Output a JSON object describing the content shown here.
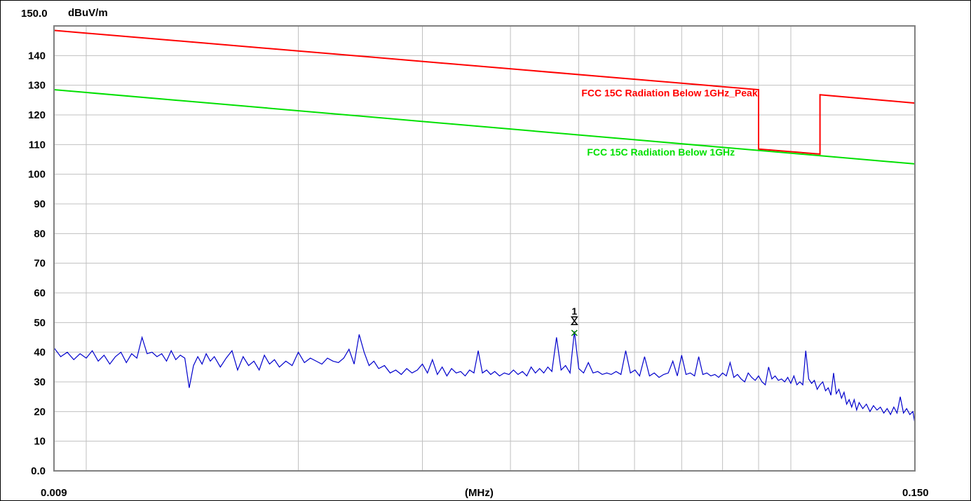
{
  "chart_data": {
    "type": "line",
    "title_value": "150.0",
    "unit_label": "dBuV/m",
    "xlabel": "(MHz)",
    "x_start_label": "0.009",
    "x_end_label": "0.150",
    "xlim": [
      0.009,
      0.15
    ],
    "x_scale": "log",
    "ylim": [
      0,
      150
    ],
    "y_ticks": [
      0,
      10,
      20,
      30,
      40,
      50,
      60,
      70,
      80,
      90,
      100,
      110,
      120,
      130,
      140,
      150
    ],
    "y_tick_labels": [
      "0.0",
      "10",
      "20",
      "30",
      "40",
      "50",
      "60",
      "70",
      "80",
      "90",
      "100",
      "110",
      "120",
      "130",
      "140"
    ],
    "grid": true,
    "limit_lines": [
      {
        "name": "FCC  15C Radiation Below 1GHz_Peak",
        "color": "#ff0000",
        "points": [
          [
            0.009,
            148.5
          ],
          [
            0.09,
            128.5
          ],
          [
            0.09,
            108.5
          ],
          [
            0.11,
            106.8
          ],
          [
            0.11,
            126.8
          ],
          [
            0.15,
            124.0
          ]
        ]
      },
      {
        "name": "FCC  15C Radiation Below 1GHz",
        "color": "#00e000",
        "points": [
          [
            0.009,
            128.5
          ],
          [
            0.15,
            103.5
          ]
        ]
      }
    ],
    "trace": {
      "color": "#0000cc",
      "points": [
        [
          0.009,
          41.5
        ],
        [
          0.0092,
          38.5
        ],
        [
          0.0094,
          40.0
        ],
        [
          0.0096,
          37.5
        ],
        [
          0.0098,
          39.5
        ],
        [
          0.01,
          38.0
        ],
        [
          0.0102,
          40.5
        ],
        [
          0.0104,
          37.0
        ],
        [
          0.0106,
          39.0
        ],
        [
          0.0108,
          36.0
        ],
        [
          0.011,
          38.5
        ],
        [
          0.0112,
          40.0
        ],
        [
          0.0114,
          36.5
        ],
        [
          0.0116,
          39.5
        ],
        [
          0.0118,
          38.0
        ],
        [
          0.012,
          45.0
        ],
        [
          0.0122,
          39.5
        ],
        [
          0.0124,
          40.0
        ],
        [
          0.0126,
          38.5
        ],
        [
          0.0128,
          39.5
        ],
        [
          0.013,
          37.0
        ],
        [
          0.0132,
          40.5
        ],
        [
          0.0134,
          37.5
        ],
        [
          0.0136,
          39.0
        ],
        [
          0.0138,
          38.0
        ],
        [
          0.014,
          28.0
        ],
        [
          0.0142,
          35.5
        ],
        [
          0.0144,
          38.5
        ],
        [
          0.0146,
          36.0
        ],
        [
          0.0148,
          39.5
        ],
        [
          0.015,
          37.0
        ],
        [
          0.0152,
          38.5
        ],
        [
          0.0155,
          35.0
        ],
        [
          0.0158,
          38.0
        ],
        [
          0.0161,
          40.5
        ],
        [
          0.0164,
          34.0
        ],
        [
          0.0167,
          38.5
        ],
        [
          0.017,
          35.5
        ],
        [
          0.0173,
          37.0
        ],
        [
          0.0176,
          34.0
        ],
        [
          0.0179,
          39.0
        ],
        [
          0.0182,
          36.0
        ],
        [
          0.0185,
          37.5
        ],
        [
          0.0188,
          35.0
        ],
        [
          0.0192,
          37.0
        ],
        [
          0.0196,
          35.5
        ],
        [
          0.02,
          40.0
        ],
        [
          0.0204,
          36.5
        ],
        [
          0.0208,
          38.0
        ],
        [
          0.0212,
          37.0
        ],
        [
          0.0216,
          36.0
        ],
        [
          0.022,
          38.0
        ],
        [
          0.0224,
          37.0
        ],
        [
          0.0228,
          36.5
        ],
        [
          0.0232,
          38.0
        ],
        [
          0.0236,
          41.0
        ],
        [
          0.024,
          36.0
        ],
        [
          0.0244,
          46.0
        ],
        [
          0.0248,
          40.0
        ],
        [
          0.0252,
          35.5
        ],
        [
          0.0256,
          37.0
        ],
        [
          0.026,
          34.5
        ],
        [
          0.0265,
          35.5
        ],
        [
          0.027,
          33.0
        ],
        [
          0.0275,
          34.0
        ],
        [
          0.028,
          32.5
        ],
        [
          0.0285,
          34.5
        ],
        [
          0.029,
          33.0
        ],
        [
          0.0295,
          34.0
        ],
        [
          0.03,
          36.0
        ],
        [
          0.0305,
          33.0
        ],
        [
          0.031,
          37.5
        ],
        [
          0.0315,
          32.5
        ],
        [
          0.032,
          35.0
        ],
        [
          0.0325,
          32.0
        ],
        [
          0.033,
          34.5
        ],
        [
          0.0335,
          33.0
        ],
        [
          0.034,
          33.5
        ],
        [
          0.0345,
          32.0
        ],
        [
          0.035,
          34.0
        ],
        [
          0.0355,
          33.0
        ],
        [
          0.036,
          40.5
        ],
        [
          0.0365,
          33.0
        ],
        [
          0.037,
          34.0
        ],
        [
          0.0375,
          32.5
        ],
        [
          0.038,
          33.5
        ],
        [
          0.0386,
          32.0
        ],
        [
          0.0392,
          33.0
        ],
        [
          0.0398,
          32.5
        ],
        [
          0.0404,
          34.0
        ],
        [
          0.041,
          32.5
        ],
        [
          0.0416,
          33.5
        ],
        [
          0.0422,
          32.0
        ],
        [
          0.0428,
          35.0
        ],
        [
          0.0434,
          33.0
        ],
        [
          0.044,
          34.5
        ],
        [
          0.0446,
          33.0
        ],
        [
          0.0452,
          35.0
        ],
        [
          0.0458,
          33.5
        ],
        [
          0.0465,
          45.0
        ],
        [
          0.0472,
          34.0
        ],
        [
          0.0479,
          35.5
        ],
        [
          0.0486,
          33.0
        ],
        [
          0.0493,
          47.0
        ],
        [
          0.05,
          34.5
        ],
        [
          0.0508,
          33.0
        ],
        [
          0.0516,
          36.5
        ],
        [
          0.0524,
          33.0
        ],
        [
          0.0532,
          33.5
        ],
        [
          0.054,
          32.5
        ],
        [
          0.0548,
          33.0
        ],
        [
          0.0556,
          32.5
        ],
        [
          0.0565,
          33.5
        ],
        [
          0.0574,
          32.5
        ],
        [
          0.0583,
          40.5
        ],
        [
          0.0592,
          33.0
        ],
        [
          0.0601,
          34.0
        ],
        [
          0.061,
          32.0
        ],
        [
          0.062,
          38.5
        ],
        [
          0.063,
          32.0
        ],
        [
          0.064,
          33.0
        ],
        [
          0.065,
          31.5
        ],
        [
          0.066,
          32.5
        ],
        [
          0.067,
          33.0
        ],
        [
          0.068,
          37.0
        ],
        [
          0.069,
          32.0
        ],
        [
          0.07,
          39.0
        ],
        [
          0.071,
          32.5
        ],
        [
          0.072,
          33.0
        ],
        [
          0.073,
          32.0
        ],
        [
          0.074,
          38.5
        ],
        [
          0.075,
          32.5
        ],
        [
          0.076,
          33.0
        ],
        [
          0.077,
          32.0
        ],
        [
          0.078,
          32.5
        ],
        [
          0.079,
          31.5
        ],
        [
          0.08,
          33.0
        ],
        [
          0.081,
          32.0
        ],
        [
          0.082,
          36.5
        ],
        [
          0.083,
          31.5
        ],
        [
          0.084,
          32.5
        ],
        [
          0.085,
          31.0
        ],
        [
          0.086,
          30.0
        ],
        [
          0.087,
          33.0
        ],
        [
          0.088,
          31.5
        ],
        [
          0.089,
          30.5
        ],
        [
          0.09,
          32.0
        ],
        [
          0.091,
          30.0
        ],
        [
          0.092,
          29.0
        ],
        [
          0.093,
          35.0
        ],
        [
          0.094,
          31.0
        ],
        [
          0.095,
          32.0
        ],
        [
          0.096,
          30.5
        ],
        [
          0.097,
          31.0
        ],
        [
          0.098,
          30.0
        ],
        [
          0.099,
          31.5
        ],
        [
          0.1,
          29.5
        ],
        [
          0.101,
          32.0
        ],
        [
          0.102,
          29.0
        ],
        [
          0.103,
          30.0
        ],
        [
          0.104,
          29.0
        ],
        [
          0.105,
          40.5
        ],
        [
          0.106,
          31.0
        ],
        [
          0.107,
          29.5
        ],
        [
          0.108,
          30.5
        ],
        [
          0.109,
          27.5
        ],
        [
          0.11,
          29.0
        ],
        [
          0.111,
          30.0
        ],
        [
          0.112,
          27.0
        ],
        [
          0.113,
          28.0
        ],
        [
          0.114,
          25.5
        ],
        [
          0.115,
          33.0
        ],
        [
          0.116,
          26.0
        ],
        [
          0.117,
          27.5
        ],
        [
          0.118,
          24.5
        ],
        [
          0.119,
          26.5
        ],
        [
          0.12,
          22.5
        ],
        [
          0.121,
          24.0
        ],
        [
          0.122,
          21.5
        ],
        [
          0.123,
          24.0
        ],
        [
          0.124,
          20.5
        ],
        [
          0.125,
          23.0
        ],
        [
          0.1265,
          21.0
        ],
        [
          0.128,
          22.5
        ],
        [
          0.1295,
          20.0
        ],
        [
          0.131,
          22.0
        ],
        [
          0.1325,
          20.5
        ],
        [
          0.134,
          21.5
        ],
        [
          0.1355,
          19.5
        ],
        [
          0.137,
          21.0
        ],
        [
          0.1385,
          19.0
        ],
        [
          0.14,
          21.5
        ],
        [
          0.1415,
          19.5
        ],
        [
          0.143,
          25.0
        ],
        [
          0.1445,
          19.5
        ],
        [
          0.146,
          21.0
        ],
        [
          0.1475,
          19.0
        ],
        [
          0.149,
          20.0
        ],
        [
          0.15,
          16.0
        ]
      ]
    },
    "markers": [
      {
        "label": "1",
        "x": 0.0493,
        "peak": 50.5,
        "qp": 46.5
      }
    ]
  }
}
